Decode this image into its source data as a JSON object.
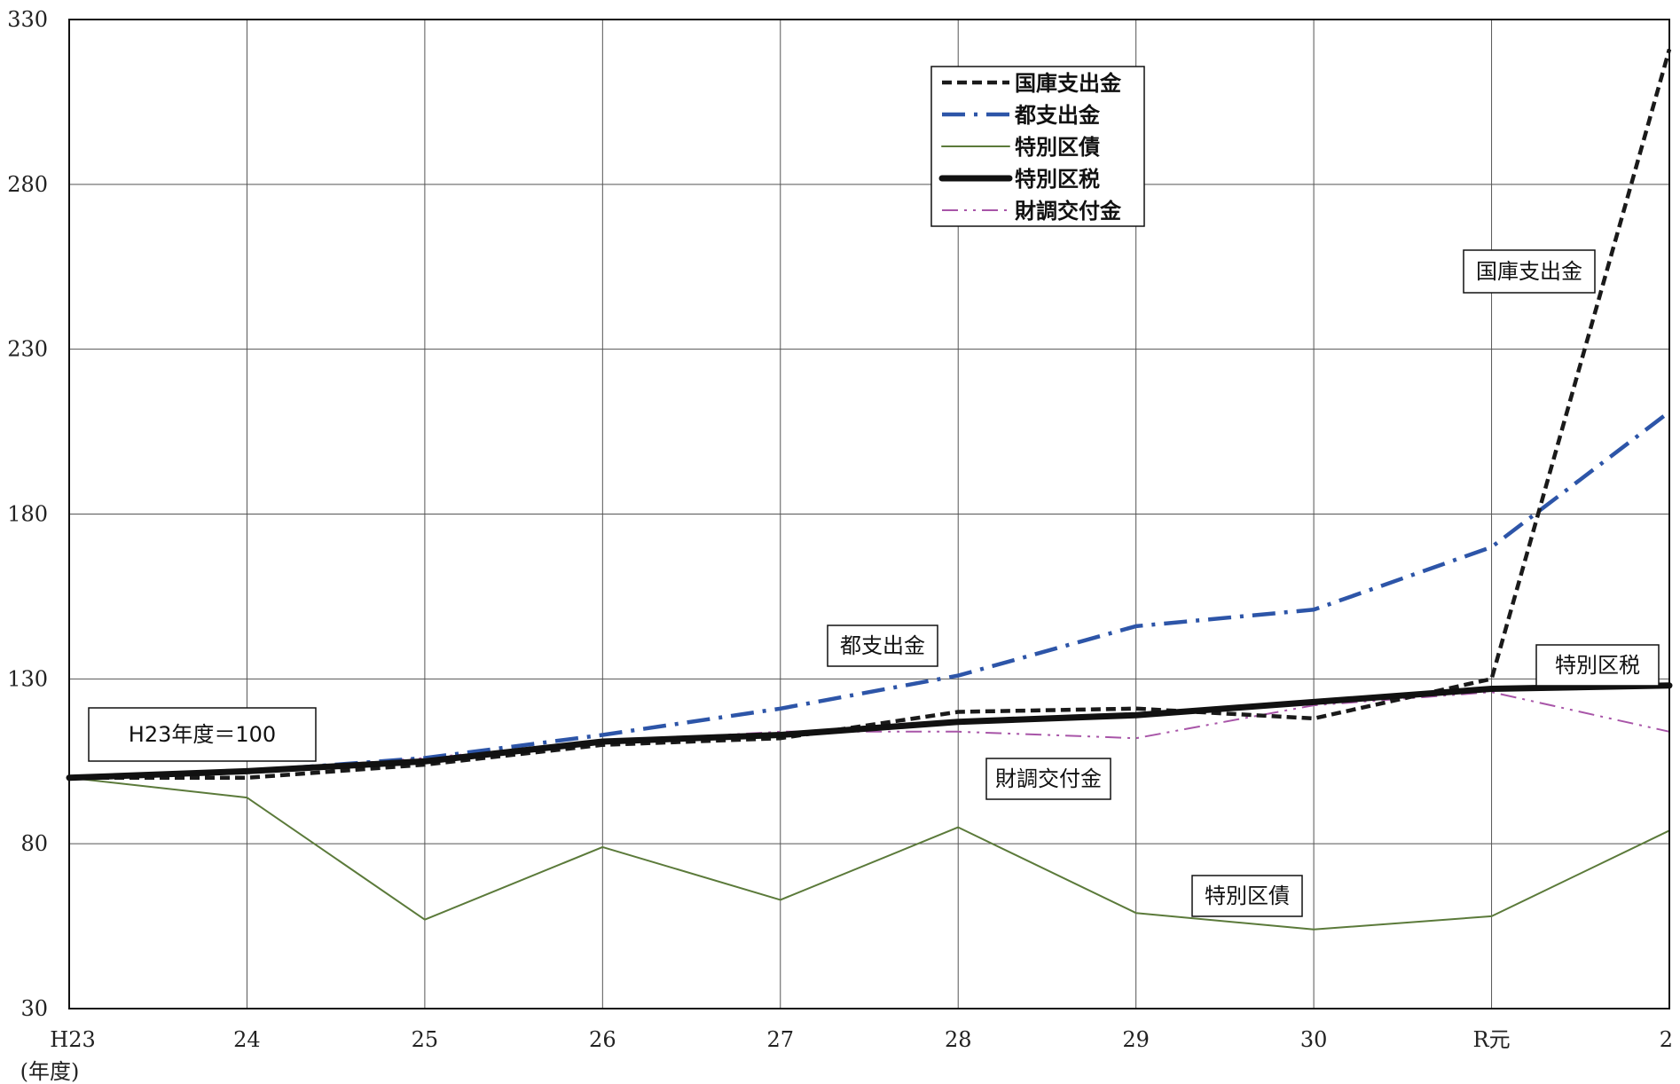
{
  "chart_data": {
    "type": "line",
    "title": "",
    "xlabel": "(年度)",
    "ylabel": "",
    "categories": [
      "H23",
      "24",
      "25",
      "26",
      "27",
      "28",
      "29",
      "30",
      "R元",
      "2"
    ],
    "y_ticks": [
      "330",
      "280",
      "230",
      "180",
      "130",
      "80",
      "30"
    ],
    "ylim": [
      30,
      330
    ],
    "grid": true,
    "legend_position": "top-center",
    "series": [
      {
        "name": "国庫支出金",
        "values": [
          100,
          100,
          104,
          110,
          112,
          120,
          121,
          118,
          130,
          321
        ],
        "color": "#1a1a1a",
        "dash": "dashed",
        "width": 4.5
      },
      {
        "name": "都支出金",
        "values": [
          100,
          102,
          106,
          113,
          121,
          131,
          146,
          151,
          170,
          211
        ],
        "color": "#2d55a8",
        "dash": "dash-dot",
        "width": 4.5
      },
      {
        "name": "特別区債",
        "values": [
          100,
          94,
          57,
          79,
          63,
          85,
          59,
          54,
          58,
          84
        ],
        "color": "#5b7a3a",
        "dash": "solid",
        "width": 2
      },
      {
        "name": "特別区税",
        "values": [
          100,
          102,
          105,
          111,
          113,
          117,
          119,
          123,
          127,
          128
        ],
        "color": "#111111",
        "dash": "solid",
        "width": 7
      },
      {
        "name": "財調交付金",
        "values": [
          100,
          102,
          106,
          111,
          114,
          114,
          112,
          122,
          126,
          114
        ],
        "color": "#a855a8",
        "dash": "dash-dot-dot",
        "width": 2
      }
    ],
    "annotations": [
      {
        "text": "H23年度＝100",
        "x": "H23",
        "y": 113
      },
      {
        "text": "都支出金",
        "x": "27",
        "y": 141
      },
      {
        "text": "財調交付金",
        "x": "28",
        "y": 100
      },
      {
        "text": "特別区債",
        "x": "29",
        "y": 65
      },
      {
        "text": "特別区税",
        "x": "R元",
        "y": 134
      },
      {
        "text": "国庫支出金",
        "x": "R元",
        "y": 253
      }
    ]
  }
}
